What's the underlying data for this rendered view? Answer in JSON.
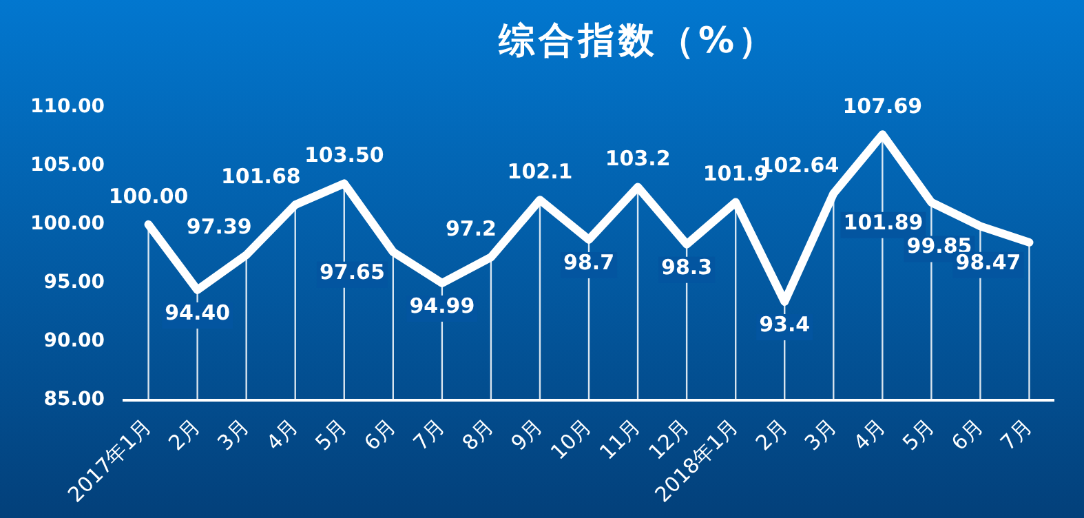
{
  "chart_data": {
    "type": "line",
    "title": "综合指数（%）",
    "categories": [
      "2017年1月",
      "2月",
      "3月",
      "4月",
      "5月",
      "6月",
      "7月",
      "8月",
      "9月",
      "10月",
      "11月",
      "12月",
      "2018年1月",
      "2月",
      "3月",
      "4月",
      "5月",
      "6月",
      "7月"
    ],
    "values": [
      100.0,
      94.4,
      97.39,
      101.68,
      103.5,
      97.65,
      94.99,
      97.2,
      102.1,
      98.7,
      103.2,
      98.3,
      101.9,
      93.4,
      102.64,
      107.69,
      101.89,
      99.85,
      98.47
    ],
    "value_labels": [
      "100.00",
      "94.40",
      "97.39",
      "101.68",
      "103.50",
      "97.65",
      "94.99",
      "97.2",
      "102.1",
      "98.7",
      "103.2",
      "98.3",
      "101.9",
      "93.4",
      "102.64",
      "107.69",
      "101.89",
      "99.85",
      "98.47"
    ],
    "color": "#ffffff",
    "marker": "none",
    "line_style": "solid",
    "grid": "x",
    "legend": false,
    "ylim": [
      85,
      110
    ],
    "yticks": [
      {
        "value": 85,
        "label": "85.00"
      },
      {
        "value": 90,
        "label": "90.00"
      },
      {
        "value": 95,
        "label": "95.00"
      },
      {
        "value": 100,
        "label": "100.00"
      },
      {
        "value": 105,
        "label": "105.00"
      },
      {
        "value": 110,
        "label": "110.00"
      }
    ]
  }
}
